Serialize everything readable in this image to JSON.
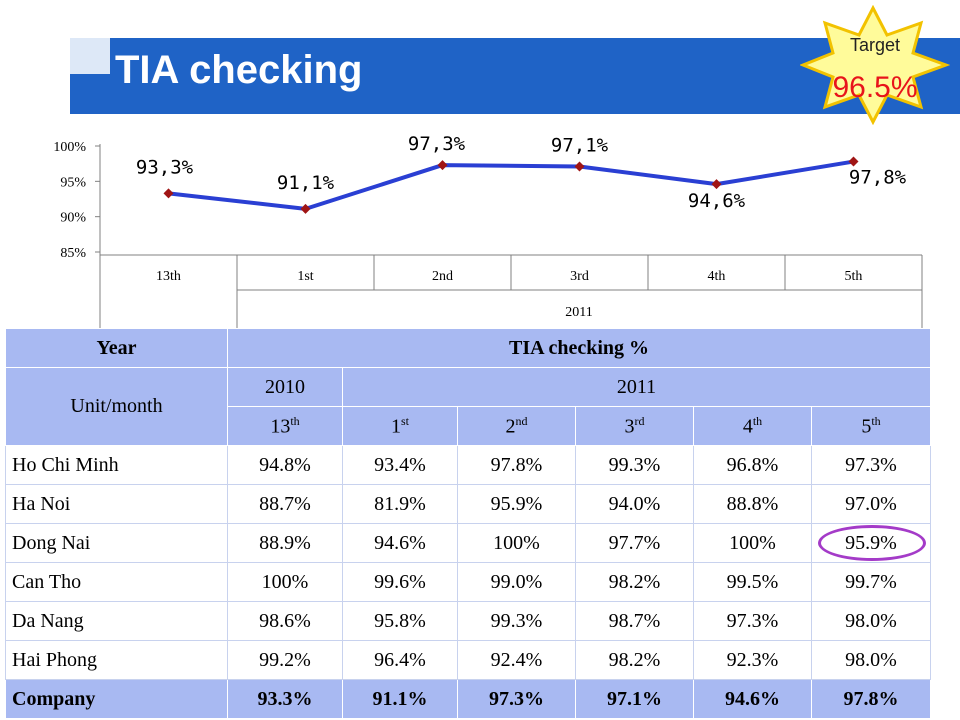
{
  "title": "TIA checking",
  "target": {
    "label": "Target",
    "value": "96.5%"
  },
  "colors": {
    "title_bar": "#1f63c6",
    "line": "#2a3fd3",
    "marker": "#a01515",
    "target_value": "#e8141b",
    "header_fill": "#a8b9f2",
    "highlight_circle": "#a43bc8",
    "star_fill": "#fffb9a",
    "star_stroke": "#f2c200"
  },
  "chart_data": {
    "type": "line",
    "categories": [
      "13th",
      "1st",
      "2nd",
      "3rd",
      "4th",
      "5th"
    ],
    "group_label": "2011",
    "values": [
      93.3,
      91.1,
      97.3,
      97.1,
      94.6,
      97.8
    ],
    "data_labels": [
      "93,3%",
      "91,1%",
      "97,3%",
      "97,1%",
      "94,6%",
      "97,8%"
    ],
    "y_ticks": [
      "100%",
      "95%",
      "90%",
      "85%"
    ],
    "ylim": [
      85,
      100
    ],
    "grid": false
  },
  "table": {
    "header_year": "Year",
    "header_metric": "TIA checking %",
    "header_unit": "Unit/month",
    "year_2010": "2010",
    "year_2011": "2011",
    "months": [
      {
        "num": "13",
        "suf": "th"
      },
      {
        "num": "1",
        "suf": "st"
      },
      {
        "num": "2",
        "suf": "nd"
      },
      {
        "num": "3",
        "suf": "rd"
      },
      {
        "num": "4",
        "suf": "th"
      },
      {
        "num": "5",
        "suf": "th"
      }
    ],
    "rows": [
      {
        "name": "Ho Chi Minh",
        "values": [
          "94.8%",
          "93.4%",
          "97.8%",
          "99.3%",
          "96.8%",
          "97.3%"
        ]
      },
      {
        "name": "Ha Noi",
        "values": [
          "88.7%",
          "81.9%",
          "95.9%",
          "94.0%",
          "88.8%",
          "97.0%"
        ]
      },
      {
        "name": "Dong Nai",
        "values": [
          "88.9%",
          "94.6%",
          "100%",
          "97.7%",
          "100%",
          "95.9%"
        ]
      },
      {
        "name": "Can Tho",
        "values": [
          "100%",
          "99.6%",
          "99.0%",
          "98.2%",
          "99.5%",
          "99.7%"
        ]
      },
      {
        "name": "Da Nang",
        "values": [
          "98.6%",
          "95.8%",
          "99.3%",
          "98.7%",
          "97.3%",
          "98.0%"
        ]
      },
      {
        "name": "Hai Phong",
        "values": [
          "99.2%",
          "96.4%",
          "92.4%",
          "98.2%",
          "92.3%",
          "98.0%"
        ]
      }
    ],
    "company": {
      "name": "Company",
      "values": [
        "93.3%",
        "91.1%",
        "97.3%",
        "97.1%",
        "94.6%",
        "97.8%"
      ]
    }
  }
}
